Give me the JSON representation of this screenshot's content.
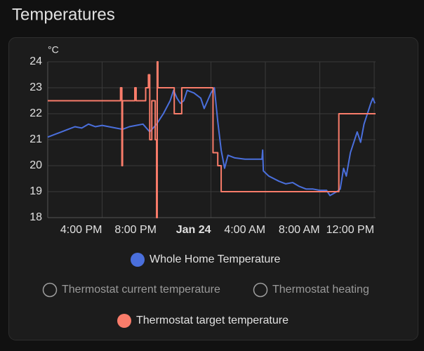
{
  "chart_data": {
    "type": "line",
    "title": "Temperatures",
    "ylabel": "°C",
    "xlim": [
      12,
      36.1
    ],
    "ylim": [
      18,
      24
    ],
    "yticks": [
      18,
      19,
      20,
      21,
      22,
      23,
      24
    ],
    "xticks": [
      {
        "value": 16,
        "label": "4:00 PM"
      },
      {
        "value": 20,
        "label": "8:00 PM"
      },
      {
        "value": 24,
        "label": "Jan 24",
        "bold": true
      },
      {
        "value": 28,
        "label": "4:00 AM"
      },
      {
        "value": 32,
        "label": "8:00 AM"
      },
      {
        "value": 36,
        "label": "12:00 PM"
      }
    ],
    "grid": true,
    "series": [
      {
        "name": "Whole Home Temperature",
        "color": "#4a6fdc",
        "hidden": false,
        "step": false,
        "x": [
          12,
          12.5,
          13,
          13.5,
          14,
          14.5,
          15,
          15.5,
          16,
          16.5,
          17,
          17.5,
          18,
          18.5,
          19,
          19.5,
          20,
          20.5,
          21,
          21.25,
          21.5,
          21.75,
          22,
          22.25,
          22.75,
          23.25,
          23.5,
          24,
          24.25,
          24.5,
          24.75,
          25,
          25.25,
          25.75,
          26.5,
          27.75,
          27.8,
          27.85,
          28.25,
          29,
          29.5,
          30,
          30.5,
          31,
          31.5,
          32,
          32.5,
          32.75,
          33.25,
          33.5,
          33.75,
          33.95,
          34.25,
          34.75,
          35,
          35.25,
          35.5,
          35.75,
          35.9,
          36.05
        ],
        "values": [
          21.1,
          21.2,
          21.3,
          21.4,
          21.5,
          21.45,
          21.6,
          21.5,
          21.55,
          21.5,
          21.45,
          21.4,
          21.5,
          21.55,
          21.6,
          21.3,
          21.6,
          22,
          22.5,
          22.9,
          22.6,
          22.4,
          22.5,
          22.9,
          22.8,
          22.6,
          22.2,
          22.8,
          23,
          21.7,
          20.6,
          19.9,
          20.4,
          20.3,
          20.25,
          20.25,
          20.6,
          19.8,
          19.6,
          19.4,
          19.3,
          19.35,
          19.2,
          19.1,
          19.1,
          19.05,
          19.05,
          18.85,
          19,
          19.1,
          19.9,
          19.6,
          20.5,
          21.3,
          20.9,
          21.6,
          22,
          22.4,
          22.6,
          22.4
        ]
      },
      {
        "name": "Thermostat current temperature",
        "hidden": true
      },
      {
        "name": "Thermostat heating",
        "hidden": true
      },
      {
        "name": "Thermostat target temperature",
        "color": "#f97c6a",
        "hidden": false,
        "step": true,
        "x": [
          12,
          17.35,
          17.45,
          17.5,
          18.4,
          18.5,
          19.2,
          19.4,
          19.5,
          19.65,
          19.9,
          20,
          20.05,
          20.1,
          21.3,
          21.85,
          24.15,
          24.5,
          24.75,
          33.4
        ],
        "values": [
          22.5,
          23,
          20,
          22.5,
          23,
          22.5,
          23,
          23.5,
          21,
          22.5,
          21,
          18,
          24,
          23,
          22,
          23,
          20.5,
          20,
          19,
          22
        ]
      }
    ]
  }
}
